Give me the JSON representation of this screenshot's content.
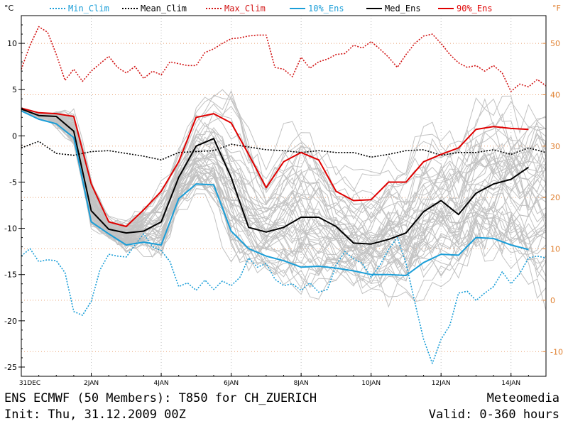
{
  "footer": {
    "title": "ENS ECMWF (50 Members): T850 for CH_ZUERICH",
    "init": "Init: Thu, 31.12.2009 00Z",
    "brand": "Meteomedia",
    "valid": "Valid: 0-360 hours"
  },
  "chart_data": {
    "type": "line",
    "title": "",
    "ylabel": "°C",
    "y2label": "°F",
    "xlim": [
      0,
      15
    ],
    "ylim": [
      -26,
      13
    ],
    "xticks": [
      0,
      2,
      4,
      6,
      8,
      10,
      12,
      14
    ],
    "xtick_labels": [
      "31DEC",
      "2JAN",
      "4JAN",
      "6JAN",
      "8JAN",
      "10JAN",
      "12JAN",
      "14JAN"
    ],
    "yticks": [
      10,
      5,
      0,
      -5,
      -10,
      -15,
      -20,
      -25
    ],
    "y2ticks": [
      50,
      40,
      30,
      20,
      10,
      0,
      -10
    ],
    "grid": {
      "x": true,
      "y_fahrenheit": true
    },
    "colors": {
      "min_clim": "#1a9ed8",
      "mean_clim": "#000000",
      "max_clim": "#d21414",
      "p10_ens": "#1a9ed8",
      "med_ens": "#000000",
      "p90_ens": "#e00000",
      "members": "#c2c2c2",
      "band": "#a8a8a8",
      "grid_c": "#bdbdbd",
      "grid_f": "#e8a070",
      "y2_axis": "#e08030"
    },
    "legend": [
      {
        "key": "min_clim",
        "label": "Min_Clim",
        "style": "dotted"
      },
      {
        "key": "mean_clim",
        "label": "Mean_Clim",
        "style": "dotted"
      },
      {
        "key": "max_clim",
        "label": "Max_Clim",
        "style": "dotted"
      },
      {
        "key": "p10_ens",
        "label": "10%_Ens",
        "style": "solid"
      },
      {
        "key": "med_ens",
        "label": "Med_Ens",
        "style": "solid"
      },
      {
        "key": "p90_ens",
        "label": "90%_Ens",
        "style": "solid"
      }
    ],
    "series": [
      {
        "key": "max_clim",
        "name": "Max_Clim",
        "style": "dotted",
        "x": [
          0,
          0.25,
          0.5,
          0.75,
          1.0,
          1.25,
          1.5,
          1.75,
          2.0,
          2.25,
          2.5,
          2.75,
          3.0,
          3.25,
          3.5,
          3.75,
          4.0,
          4.25,
          4.5,
          4.75,
          5.0,
          5.25,
          5.5,
          5.75,
          6.0,
          6.25,
          6.5,
          6.75,
          7.0,
          7.25,
          7.5,
          7.75,
          8.0,
          8.25,
          8.5,
          8.75,
          9.0,
          9.25,
          9.5,
          9.75,
          10.0,
          10.25,
          10.5,
          10.75,
          11.0,
          11.25,
          11.5,
          11.75,
          12.0,
          12.25,
          12.5,
          12.75,
          13.0,
          13.25,
          13.5,
          13.75,
          14.0,
          14.25,
          14.5,
          14.75,
          15.0
        ],
        "y": [
          7.2,
          9.8,
          11.8,
          11.2,
          8.8,
          6.0,
          7.2,
          5.9,
          7.0,
          7.8,
          8.6,
          7.4,
          6.8,
          7.5,
          6.2,
          7.0,
          6.6,
          8.0,
          7.8,
          7.6,
          7.6,
          9.0,
          9.4,
          10.0,
          10.5,
          10.6,
          10.8,
          10.9,
          10.9,
          7.4,
          7.2,
          6.4,
          8.5,
          7.3,
          8.0,
          8.3,
          8.8,
          8.9,
          9.8,
          9.5,
          10.2,
          9.4,
          8.5,
          7.4,
          8.8,
          10.0,
          10.8,
          11.0,
          10.0,
          8.8,
          7.9,
          7.4,
          7.6,
          7.0,
          7.6,
          6.8,
          4.8,
          5.6,
          5.3,
          6.1,
          5.4
        ]
      },
      {
        "key": "mean_clim",
        "name": "Mean_Clim",
        "style": "dotted",
        "x": [
          0,
          0.5,
          1.0,
          1.5,
          2.0,
          2.5,
          3.0,
          3.5,
          4.0,
          4.5,
          5.0,
          5.5,
          6.0,
          6.5,
          7.0,
          7.5,
          8.0,
          8.5,
          9.0,
          9.5,
          10.0,
          10.5,
          11.0,
          11.5,
          12.0,
          12.5,
          13.0,
          13.5,
          14.0,
          14.5,
          15.0
        ],
        "y": [
          -1.3,
          -0.6,
          -1.9,
          -2.1,
          -1.7,
          -1.6,
          -1.9,
          -2.2,
          -2.6,
          -1.8,
          -1.7,
          -1.6,
          -0.9,
          -1.2,
          -1.5,
          -1.6,
          -1.8,
          -1.6,
          -1.8,
          -1.8,
          -2.3,
          -2.0,
          -1.6,
          -1.5,
          -2.1,
          -1.8,
          -1.8,
          -1.5,
          -2.0,
          -1.3,
          -1.8
        ]
      },
      {
        "key": "min_clim",
        "name": "Min_Clim",
        "style": "dotted",
        "x": [
          0,
          0.25,
          0.5,
          0.75,
          1.0,
          1.25,
          1.5,
          1.75,
          2.0,
          2.25,
          2.5,
          2.75,
          3.0,
          3.25,
          3.5,
          3.75,
          4.0,
          4.25,
          4.5,
          4.75,
          5.0,
          5.25,
          5.5,
          5.75,
          6.0,
          6.25,
          6.5,
          6.75,
          7.0,
          7.25,
          7.5,
          7.75,
          8.0,
          8.25,
          8.5,
          8.75,
          9.0,
          9.25,
          9.5,
          9.75,
          10.0,
          10.25,
          10.5,
          10.75,
          11.0,
          11.25,
          11.5,
          11.75,
          12.0,
          12.25,
          12.5,
          12.75,
          13.0,
          13.25,
          13.5,
          13.75,
          14.0,
          14.25,
          14.5,
          14.75,
          15.0
        ],
        "y": [
          -13.0,
          -12.2,
          -13.6,
          -13.4,
          -13.5,
          -14.8,
          -19.0,
          -19.4,
          -17.9,
          -14.5,
          -12.8,
          -13.0,
          -13.1,
          -11.8,
          -10.6,
          -12.0,
          -12.4,
          -13.6,
          -16.3,
          -15.9,
          -16.7,
          -15.6,
          -16.6,
          -15.7,
          -16.2,
          -15.3,
          -13.2,
          -14.2,
          -13.8,
          -15.5,
          -16.2,
          -16.0,
          -16.7,
          -15.9,
          -16.9,
          -16.6,
          -14.0,
          -12.5,
          -13.3,
          -13.8,
          -15.3,
          -14.0,
          -12.3,
          -11.0,
          -13.8,
          -18.0,
          -22.0,
          -24.6,
          -22.0,
          -20.5,
          -17.0,
          -16.8,
          -17.8,
          -17.0,
          -16.3,
          -14.7,
          -16.0,
          -14.9,
          -13.2,
          -13.0,
          -13.2
        ]
      },
      {
        "key": "p90_ens",
        "name": "90%_Ens",
        "style": "solid",
        "x": [
          0,
          0.5,
          1.0,
          1.5,
          2.0,
          2.5,
          3.0,
          3.5,
          4.0,
          4.5,
          5.0,
          5.5,
          6.0,
          6.5,
          7.0,
          7.5,
          8.0,
          8.5,
          9.0,
          9.5,
          10.0,
          10.5,
          11.0,
          11.5,
          12.0,
          12.5,
          13.0,
          13.5,
          14.0,
          14.5
        ],
        "y": [
          3.0,
          2.5,
          2.4,
          2.1,
          -5.2,
          -9.3,
          -9.8,
          -8.0,
          -6.0,
          -2.8,
          2.0,
          2.4,
          1.4,
          -2.0,
          -5.6,
          -2.8,
          -1.8,
          -2.6,
          -6.0,
          -7.0,
          -6.9,
          -5.0,
          -5.0,
          -2.8,
          -2.0,
          -1.3,
          0.7,
          1.0,
          0.8,
          0.7
        ]
      },
      {
        "key": "med_ens",
        "name": "Med_Ens",
        "style": "solid",
        "x": [
          0,
          0.5,
          1.0,
          1.5,
          2.0,
          2.5,
          3.0,
          3.5,
          4.0,
          4.5,
          5.0,
          5.5,
          6.0,
          6.5,
          7.0,
          7.5,
          8.0,
          8.5,
          9.0,
          9.5,
          10.0,
          10.5,
          11.0,
          11.5,
          12.0,
          12.5,
          13.0,
          13.5,
          14.0,
          14.5
        ],
        "y": [
          2.9,
          2.2,
          2.1,
          0.5,
          -8.1,
          -10.1,
          -10.5,
          -10.3,
          -9.3,
          -4.5,
          -1.1,
          -0.3,
          -4.5,
          -9.9,
          -10.4,
          -9.9,
          -8.8,
          -8.8,
          -9.8,
          -11.6,
          -11.7,
          -11.2,
          -10.5,
          -8.2,
          -7.0,
          -8.5,
          -6.2,
          -5.2,
          -4.7,
          -3.4
        ]
      },
      {
        "key": "p10_ens",
        "name": "10%_Ens",
        "style": "solid",
        "x": [
          0,
          0.5,
          1.0,
          1.5,
          2.0,
          2.5,
          3.0,
          3.5,
          4.0,
          4.5,
          5.0,
          5.5,
          6.0,
          6.5,
          7.0,
          7.5,
          8.0,
          8.5,
          9.0,
          9.5,
          10.0,
          10.5,
          11.0,
          11.5,
          12.0,
          12.5,
          13.0,
          13.5,
          14.0,
          14.5
        ],
        "y": [
          2.7,
          1.8,
          1.3,
          -0.2,
          -9.3,
          -10.6,
          -11.8,
          -11.5,
          -11.8,
          -6.8,
          -5.2,
          -5.3,
          -10.3,
          -12.2,
          -13.0,
          -13.5,
          -14.2,
          -14.1,
          -14.3,
          -14.6,
          -15.0,
          -15.0,
          -15.1,
          -13.7,
          -12.8,
          -12.9,
          -11.0,
          -11.1,
          -11.8,
          -12.3
        ]
      }
    ]
  }
}
